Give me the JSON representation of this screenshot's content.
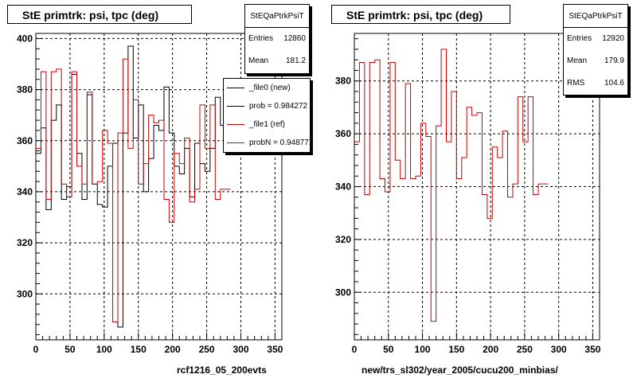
{
  "titles": [
    "StE primtrk: psi, tpc (deg)",
    "StE primtrk: psi, tpc (deg)"
  ],
  "stats": [
    {
      "name": "StEQaPtrkPsiT",
      "rows": [
        {
          "k": "Entries",
          "v": "12860"
        },
        {
          "k": "Mean",
          "v": "181.2"
        }
      ]
    },
    {
      "name": "StEQaPtrkPsiT",
      "rows": [
        {
          "k": "Entries",
          "v": "12920"
        },
        {
          "k": "Mean",
          "v": "179.9"
        },
        {
          "k": "RMS",
          "v": "104.6"
        }
      ]
    }
  ],
  "legend": {
    "entries": [
      {
        "label": "_file0 (new)",
        "color": "#000000",
        "marker": true
      },
      {
        "label": "prob = 0.984272",
        "color": "#000000",
        "marker": false
      },
      {
        "label": "_file1 (ref)",
        "color": "#cc0000",
        "marker": true
      },
      {
        "label": "probN = 0.948771",
        "color": "#cc0000",
        "marker": false
      }
    ]
  },
  "footer_left": "rcf1216_05_200evts",
  "footer_right": "new/trs_sl302/year_2005/cucu200_minbias/",
  "colors": {
    "new": "#000000",
    "ref": "#cc0000",
    "grid": "#000000"
  },
  "chart_data": [
    {
      "type": "histogram",
      "title": "StE primtrk: psi, tpc (deg)",
      "xlim": [
        0,
        360
      ],
      "ylim": [
        282,
        402
      ],
      "xticks": [
        0,
        50,
        100,
        150,
        200,
        250,
        300,
        350
      ],
      "yticks": [
        300,
        320,
        340,
        360,
        380,
        400
      ],
      "bin_width": 7.5,
      "grid": true,
      "series": [
        {
          "name": "_file0 (new)",
          "color": "#000000",
          "values": [
            355,
            365,
            333,
            368,
            374,
            337,
            342,
            386,
            355,
            337,
            378,
            343,
            335,
            334,
            350,
            359,
            287,
            363,
            397,
            361,
            374,
            340,
            353,
            366,
            364,
            381,
            363,
            350,
            347,
            357,
            338,
            359,
            351,
            348,
            357,
            377,
            366,
            358
          ]
        },
        {
          "name": "_file1 (ref)",
          "color": "#cc0000",
          "values": [
            357,
            387,
            337,
            387,
            388,
            343,
            338,
            387,
            350,
            343,
            379,
            343,
            344,
            364,
            359,
            289,
            363,
            392,
            357,
            376,
            343,
            351,
            370,
            367,
            368,
            337,
            328,
            355,
            351,
            361,
            336,
            341,
            374,
            357,
            374,
            337,
            341,
            341
          ]
        }
      ]
    },
    {
      "type": "histogram",
      "title": "StE primtrk: psi, tpc (deg)",
      "xlim": [
        0,
        360
      ],
      "ylim": [
        282,
        398
      ],
      "xticks": [
        0,
        50,
        100,
        150,
        200,
        250,
        300,
        350
      ],
      "yticks": [
        300,
        320,
        340,
        360,
        380
      ],
      "bin_width": 7.5,
      "grid": true,
      "series": [
        {
          "name": "_file1 (ref)",
          "color": "#cc0000",
          "values": [
            357,
            387,
            337,
            387,
            388,
            343,
            338,
            387,
            350,
            343,
            379,
            343,
            344,
            364,
            359,
            289,
            363,
            392,
            357,
            376,
            343,
            351,
            370,
            367,
            368,
            337,
            328,
            355,
            351,
            361,
            336,
            341,
            374,
            357,
            374,
            337,
            341,
            341
          ]
        }
      ]
    }
  ]
}
